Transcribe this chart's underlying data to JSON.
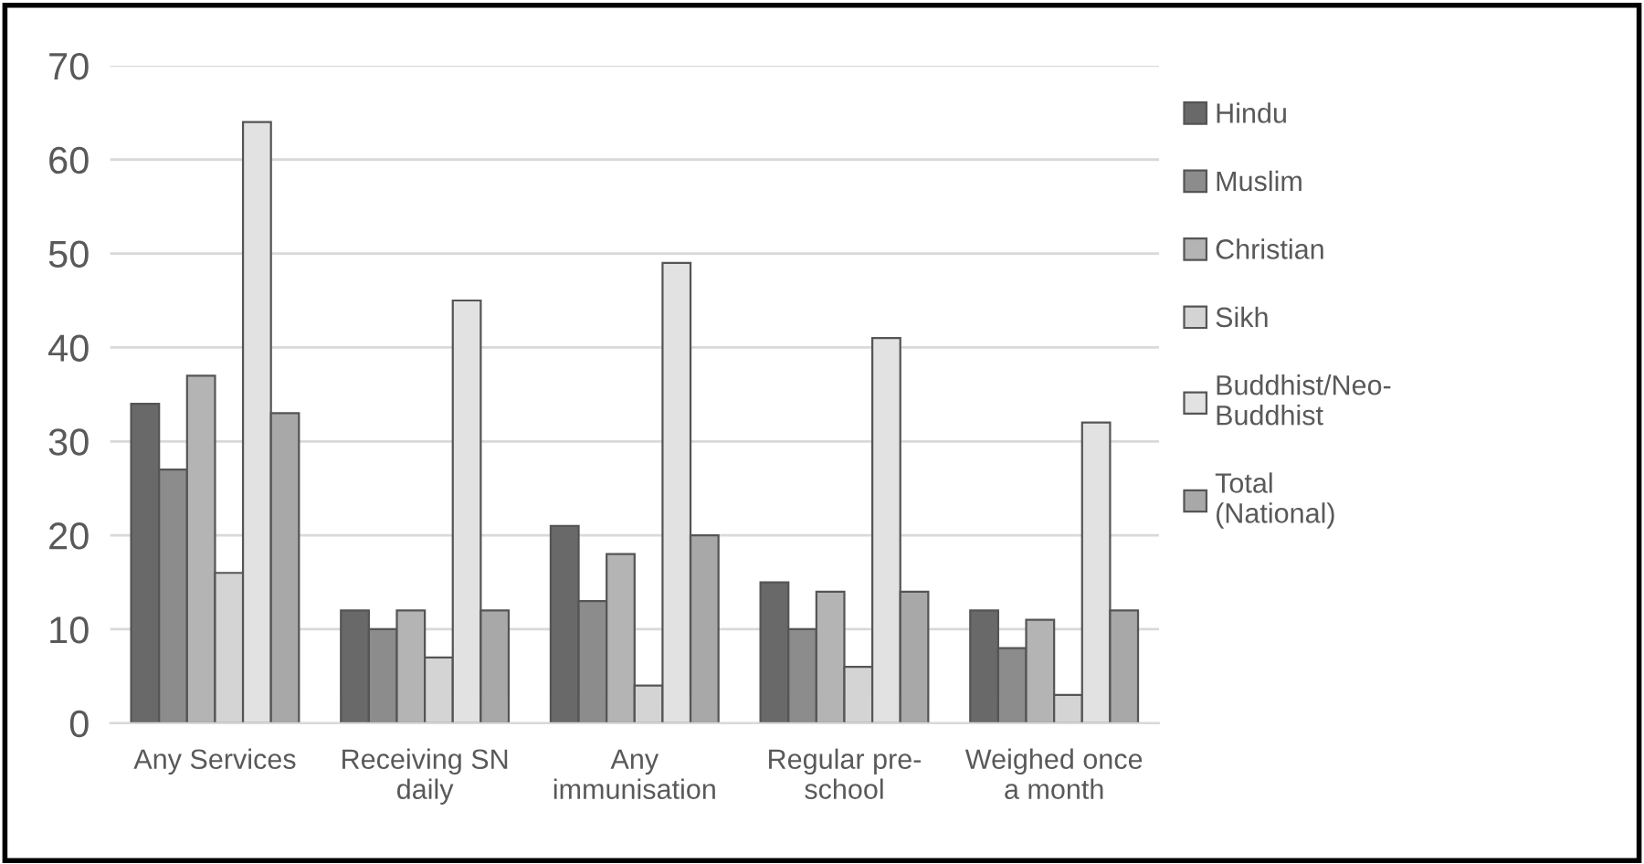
{
  "chart_data": {
    "type": "bar",
    "categories": [
      "Any Services",
      "Receiving SN\ndaily",
      "Any\nimmunisation",
      "Regular pre-\nschool",
      "Weighed once\na month"
    ],
    "series": [
      {
        "name": "Hindu",
        "color": "#696969",
        "values": [
          34,
          12,
          21,
          15,
          12
        ]
      },
      {
        "name": "Muslim",
        "color": "#8c8c8c",
        "values": [
          27,
          10,
          13,
          10,
          8
        ]
      },
      {
        "name": "Christian",
        "color": "#b4b4b4",
        "values": [
          37,
          12,
          18,
          14,
          11
        ]
      },
      {
        "name": "Sikh",
        "color": "#d4d4d4",
        "values": [
          16,
          7,
          4,
          6,
          3
        ]
      },
      {
        "name": "Buddhist/Neo-\nBuddhist",
        "color": "#e2e2e2",
        "values": [
          64,
          45,
          49,
          41,
          32
        ]
      },
      {
        "name": "Total\n(National)",
        "color": "#a8a8a8",
        "values": [
          33,
          12,
          20,
          14,
          12
        ]
      }
    ],
    "ylim": [
      0,
      70
    ],
    "yticks": [
      0,
      10,
      20,
      30,
      40,
      50,
      60,
      70
    ],
    "grid": "y",
    "legend": "right"
  }
}
